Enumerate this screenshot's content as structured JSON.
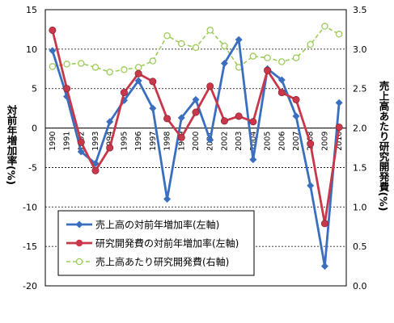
{
  "chart_data": {
    "type": "line",
    "categories": [
      "1990",
      "1991",
      "1992",
      "1993",
      "1994",
      "1995",
      "1996",
      "1997",
      "1998",
      "1999",
      "2000",
      "2001",
      "2002",
      "2003",
      "2004",
      "2005",
      "2006",
      "2007",
      "2008",
      "2009",
      "2010"
    ],
    "ylabel_left": "対前年増加率(%)",
    "ylabel_right": "売上高あたり研究開発費(%)",
    "ylim_left": [
      -20,
      15
    ],
    "yticks_left": [
      -20,
      -15,
      -10,
      -5,
      0,
      5,
      10,
      15
    ],
    "ylim_right": [
      0.0,
      3.5
    ],
    "yticks_right": [
      "0.0",
      "0.5",
      "1.0",
      "1.5",
      "2.0",
      "2.5",
      "3.0",
      "3.5"
    ],
    "grid": "horizontal",
    "legend_position": "bottom-left",
    "series": [
      {
        "name": "売上高の対前年増加率(左軸)",
        "axis": "left",
        "color": "#3a6fc0",
        "marker": "diamond",
        "dashed": false,
        "values": [
          9.8,
          4.0,
          -3.0,
          -4.5,
          0.8,
          3.5,
          6.0,
          2.5,
          -9.0,
          1.3,
          3.6,
          -1.5,
          8.2,
          11.2,
          -4.0,
          7.5,
          6.1,
          1.5,
          -7.3,
          -17.5,
          3.2
        ]
      },
      {
        "name": "研究開発費の対前年増加率(左軸)",
        "axis": "left",
        "color": "#c8384a",
        "marker": "circle",
        "dashed": false,
        "values": [
          12.4,
          5.0,
          -1.8,
          -5.4,
          -2.5,
          4.5,
          6.9,
          5.9,
          1.2,
          -1.2,
          2.0,
          5.3,
          0.9,
          1.5,
          0.8,
          7.3,
          4.5,
          3.6,
          -2.0,
          -12.1,
          0.1
        ]
      },
      {
        "name": "売上高あたり研究開発費(右軸)",
        "axis": "right",
        "color": "#9ccc5a",
        "marker": "open-circle",
        "dashed": true,
        "values": [
          2.78,
          2.81,
          2.82,
          2.77,
          2.71,
          2.74,
          2.77,
          2.85,
          3.17,
          3.07,
          3.02,
          3.24,
          3.04,
          2.77,
          2.91,
          2.89,
          2.84,
          2.89,
          3.06,
          3.29,
          3.19
        ]
      }
    ]
  }
}
